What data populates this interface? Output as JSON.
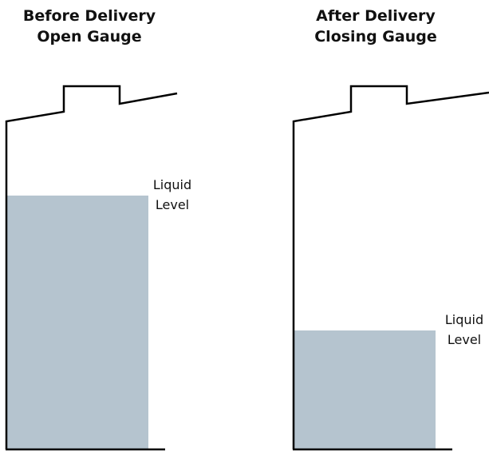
{
  "panels": [
    {
      "title": [
        "Before Delivery",
        "Open Gauge"
      ],
      "label": [
        "Liquid",
        "Level"
      ]
    },
    {
      "title": [
        "After Delivery",
        "Closing Gauge"
      ],
      "label": [
        "Liquid",
        "Level"
      ]
    }
  ]
}
